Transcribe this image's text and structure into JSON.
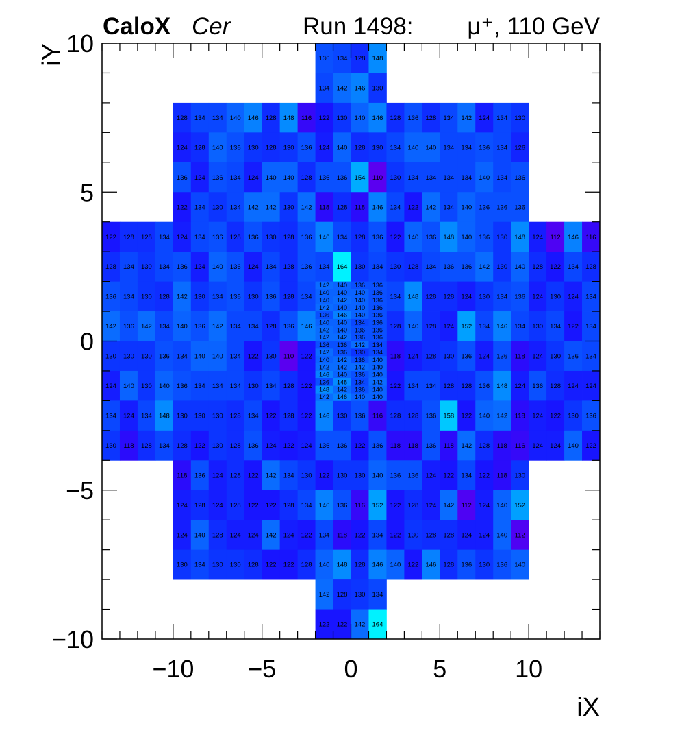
{
  "header": {
    "brand": "CaloX",
    "channel": "Cer",
    "run": "Run 1498:",
    "particle": "μ⁺, 110 GeV"
  },
  "chart_data": {
    "type": "heatmap",
    "title": "",
    "xlabel": "iX",
    "ylabel": "iY",
    "xlim": [
      -14,
      14
    ],
    "ylim": [
      -10,
      10
    ],
    "x_ticks": [
      -10,
      -5,
      0,
      5,
      10
    ],
    "y_ticks": [
      -10,
      -5,
      0,
      5,
      10
    ],
    "tick_labels_x": [
      "−10",
      "−5",
      "0",
      "5",
      "10"
    ],
    "tick_labels_y": [
      "−10",
      "−5",
      "0",
      "5",
      "10"
    ],
    "colorscale": {
      "min": 110,
      "max": 164,
      "colors": [
        "#5a00f0",
        "#1a10ff",
        "#0a3cff",
        "#0a6eff",
        "#00a6ff",
        "#00f2ff"
      ]
    },
    "regions": [
      {
        "x0": -2,
        "y0": 9,
        "values": [
          [
            136,
            134,
            128,
            148
          ],
          [
            134,
            142,
            146,
            130
          ]
        ]
      },
      {
        "x0": -10,
        "y0": 7,
        "values": [
          [
            128,
            134,
            134,
            140,
            146,
            128,
            148,
            116,
            122,
            130,
            140,
            146,
            128,
            136,
            128,
            134,
            142,
            124,
            134,
            130
          ],
          [
            124,
            128,
            140,
            136,
            130,
            128,
            130,
            136,
            124,
            140,
            128,
            130,
            134,
            140,
            140,
            134,
            134,
            136,
            134,
            126
          ],
          [
            136,
            124,
            136,
            134,
            124,
            140,
            140,
            128,
            136,
            136,
            154,
            110,
            130,
            134,
            134,
            134,
            134,
            140,
            134,
            136
          ],
          [
            122,
            134,
            130,
            134,
            142,
            142,
            130,
            142,
            118,
            128,
            118,
            146,
            134,
            122,
            142,
            134,
            140,
            136,
            136,
            136
          ]
        ]
      },
      {
        "x0": -14,
        "y0": 3,
        "values": [
          [
            122,
            128,
            128,
            134,
            124,
            134,
            136,
            128,
            136,
            130,
            128,
            136,
            146,
            134,
            128,
            136,
            122,
            140,
            136,
            148,
            140,
            136,
            130,
            148,
            124,
            112,
            146,
            116
          ],
          [
            128,
            134,
            130,
            134,
            136,
            124,
            140,
            136,
            124,
            134,
            128,
            136,
            134,
            164,
            130,
            134,
            130,
            128,
            134,
            136,
            136,
            142,
            130,
            140,
            128,
            122,
            134,
            128
          ],
          [
            136,
            134,
            130,
            128,
            142,
            130,
            134,
            136,
            130,
            136,
            128,
            134,
            null,
            null,
            null,
            null,
            134,
            148,
            128,
            128,
            124,
            130,
            134,
            136,
            124,
            130,
            124,
            134
          ],
          [
            142,
            136,
            142,
            134,
            140,
            136,
            142,
            134,
            134,
            128,
            136,
            146,
            null,
            null,
            null,
            null,
            128,
            140,
            128,
            124,
            152,
            134,
            146,
            134,
            130,
            134,
            122,
            134
          ],
          [
            130,
            130,
            130,
            136,
            134,
            140,
            140,
            134,
            122,
            130,
            110,
            122,
            null,
            null,
            null,
            null,
            118,
            124,
            128,
            130,
            136,
            124,
            136,
            118,
            124,
            130,
            136,
            134
          ],
          [
            124,
            140,
            130,
            140,
            136,
            134,
            134,
            134,
            130,
            134,
            128,
            122,
            null,
            null,
            null,
            null,
            122,
            134,
            134,
            128,
            128,
            136,
            148,
            124,
            136,
            128,
            124,
            124
          ],
          [
            134,
            124,
            134,
            148,
            130,
            130,
            130,
            128,
            134,
            122,
            128,
            122,
            146,
            130,
            136,
            116,
            128,
            128,
            136,
            158,
            122,
            140,
            142,
            118,
            124,
            122,
            130,
            136
          ],
          [
            130,
            118,
            128,
            134,
            128,
            122,
            130,
            128,
            136,
            124,
            122,
            124,
            136,
            136,
            122,
            136,
            118,
            118,
            136,
            118,
            142,
            128,
            118,
            116,
            124,
            124,
            140,
            122
          ]
        ]
      },
      {
        "x0": -10,
        "y0": -5,
        "values": [
          [
            118,
            136,
            124,
            128,
            122,
            142,
            134,
            130,
            122,
            130,
            130,
            140,
            136,
            136,
            124,
            122,
            134,
            122,
            118,
            130
          ],
          [
            124,
            128,
            124,
            128,
            122,
            122,
            128,
            134,
            146,
            136,
            116,
            152,
            122,
            128,
            124,
            142,
            112,
            124,
            140,
            152
          ],
          [
            124,
            140,
            128,
            124,
            124,
            142,
            124,
            122,
            134,
            118,
            122,
            134,
            122,
            130,
            128,
            128,
            124,
            124,
            140,
            112
          ],
          [
            130,
            134,
            130,
            130,
            128,
            122,
            122,
            128,
            140,
            148,
            128,
            146,
            140,
            122,
            146,
            128,
            136,
            130,
            136,
            140
          ]
        ]
      },
      {
        "x0": -2,
        "y0": -9,
        "values": [
          [
            142,
            128,
            130,
            134
          ],
          [
            122,
            122,
            142,
            164
          ]
        ]
      }
    ],
    "fine_region": {
      "x0": -2,
      "x1": 2,
      "y0": -2,
      "y1": 2,
      "rows": 16,
      "cols": 4,
      "values": [
        [
          142,
          140,
          136,
          136
        ],
        [
          140,
          140,
          140,
          136
        ],
        [
          140,
          142,
          140,
          136
        ],
        [
          142,
          140,
          140,
          136
        ],
        [
          136,
          146,
          140,
          136
        ],
        [
          140,
          140,
          134,
          136
        ],
        [
          142,
          140,
          136,
          136
        ],
        [
          142,
          142,
          136,
          136
        ],
        [
          136,
          136,
          142,
          134
        ],
        [
          142,
          136,
          130,
          134
        ],
        [
          140,
          142,
          136,
          140
        ],
        [
          142,
          142,
          142,
          140
        ],
        [
          146,
          140,
          136,
          140
        ],
        [
          136,
          148,
          134,
          142
        ],
        [
          148,
          142,
          136,
          140
        ],
        [
          142,
          146,
          140,
          140
        ]
      ]
    }
  }
}
